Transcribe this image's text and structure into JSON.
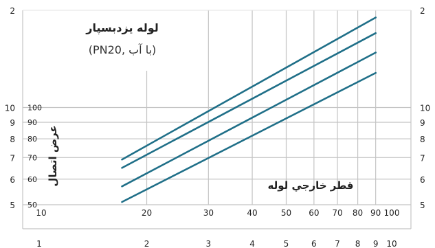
{
  "chart_data": {
    "type": "line",
    "title": "لوله یزدبسپار",
    "subtitle": "(PN20, با آب)",
    "xlabel": "قطر خارجي لوله",
    "ylabel": "عرض اتصال",
    "x_scale": "log",
    "y_scale": "log",
    "xlim": [
      10,
      100
    ],
    "ylim": [
      50,
      200
    ],
    "grid": true,
    "x_tick_labels": [
      "10",
      "20",
      "30",
      "40",
      "50",
      "60",
      "70",
      "80",
      "90",
      "100"
    ],
    "y_tick_labels": [
      "50",
      "60",
      "70",
      "80",
      "90",
      "100"
    ],
    "left_scale_labels": [
      "10",
      "9",
      "8",
      "7",
      "6",
      "5",
      "2"
    ],
    "right_scale_labels": [
      "2",
      "10",
      "9",
      "8",
      "7",
      "6",
      "5"
    ],
    "bottom_scale_labels": [
      "1",
      "2",
      "3",
      "4",
      "5",
      "6",
      "7",
      "8",
      "9",
      "10"
    ],
    "series": [
      {
        "x": [
          17,
          90
        ],
        "values": [
          69,
          190
        ]
      },
      {
        "x": [
          17,
          90
        ],
        "values": [
          65,
          170
        ]
      },
      {
        "x": [
          17,
          90
        ],
        "values": [
          57,
          148
        ]
      },
      {
        "x": [
          17,
          90
        ],
        "values": [
          51,
          128
        ]
      }
    ],
    "line_color": "#1f6f88"
  }
}
